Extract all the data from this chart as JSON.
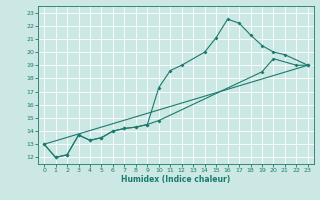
{
  "xlabel": "Humidex (Indice chaleur)",
  "background_color": "#cce8e4",
  "grid_color": "#ffffff",
  "line_color": "#1a7a6e",
  "xlim": [
    -0.5,
    23.5
  ],
  "ylim": [
    11.5,
    23.5
  ],
  "xticks": [
    0,
    1,
    2,
    3,
    4,
    5,
    6,
    7,
    8,
    9,
    10,
    11,
    12,
    13,
    14,
    15,
    16,
    17,
    18,
    19,
    20,
    21,
    22,
    23
  ],
  "yticks": [
    12,
    13,
    14,
    15,
    16,
    17,
    18,
    19,
    20,
    21,
    22,
    23
  ],
  "line1_x": [
    0,
    1,
    2,
    3,
    4,
    5,
    6,
    7,
    8,
    9,
    10,
    11,
    12,
    14,
    15,
    16,
    17,
    18,
    19,
    20,
    21,
    23
  ],
  "line1_y": [
    13.0,
    12.0,
    12.2,
    13.7,
    13.3,
    13.5,
    14.0,
    14.2,
    14.3,
    14.5,
    17.3,
    18.6,
    19.0,
    20.0,
    21.1,
    22.5,
    22.2,
    21.3,
    20.5,
    20.0,
    19.8,
    19.0
  ],
  "line2_x": [
    0,
    1,
    2,
    3,
    4,
    5,
    6,
    7,
    8,
    9,
    10,
    19,
    20,
    22,
    23
  ],
  "line2_y": [
    13.0,
    12.0,
    12.2,
    13.7,
    13.3,
    13.5,
    14.0,
    14.2,
    14.3,
    14.5,
    14.8,
    18.5,
    19.5,
    19.0,
    19.0
  ],
  "line3_x": [
    0,
    23
  ],
  "line3_y": [
    13.0,
    19.0
  ]
}
